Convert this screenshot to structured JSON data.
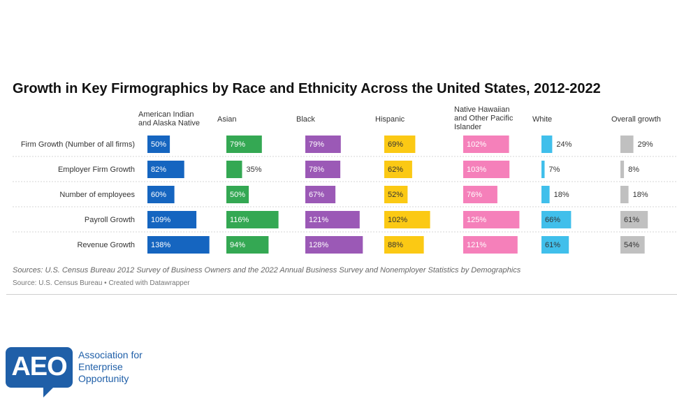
{
  "title": "Growth in Key Firmographics by Race and Ethnicity Across the United States, 2012-2022",
  "chart_data": {
    "type": "bar",
    "orientation": "horizontal",
    "layout": "small-multiples-table",
    "columns": [
      {
        "name": [
          "American Indian",
          "and Alaska Native"
        ],
        "color": "#1565c0"
      },
      {
        "name": [
          "Asian"
        ],
        "color": "#34a853"
      },
      {
        "name": [
          "Black"
        ],
        "color": "#9b59b6"
      },
      {
        "name": [
          "Hispanic"
        ],
        "color": "#fbc914"
      },
      {
        "name": [
          "Native Hawaiian",
          "and Other Pacific",
          "Islander"
        ],
        "color": "#f580ba"
      },
      {
        "name": [
          "White"
        ],
        "color": "#40bfeb"
      },
      {
        "name": [
          "Overall growth"
        ],
        "color": "#c0c0c0"
      }
    ],
    "rows": [
      {
        "label": "Firm Growth (Number of all firms)",
        "values": [
          50,
          79,
          79,
          69,
          102,
          24,
          29
        ]
      },
      {
        "label": "Employer Firm Growth",
        "values": [
          82,
          35,
          78,
          62,
          103,
          7,
          8
        ]
      },
      {
        "label": "Number of employees",
        "values": [
          60,
          50,
          67,
          52,
          76,
          18,
          18
        ]
      },
      {
        "label": "Payroll Growth",
        "values": [
          109,
          116,
          121,
          102,
          125,
          66,
          61
        ]
      },
      {
        "label": "Revenue Growth",
        "values": [
          138,
          94,
          128,
          88,
          121,
          61,
          54
        ]
      }
    ],
    "value_suffix": "%",
    "xlim": [
      0,
      140
    ]
  },
  "sources": {
    "line1": "Sources: U.S. Census Bureau 2012 Survey of Business Owners and the 2022 Annual Business Survey and Nonemployer Statistics by Demographics",
    "line2": "Source: U.S. Census Bureau • Created with Datawrapper"
  },
  "logo": {
    "letters": "AEO",
    "text": [
      "Association for",
      "Enterprise",
      "Opportunity"
    ],
    "color": "#1f5fa8"
  }
}
